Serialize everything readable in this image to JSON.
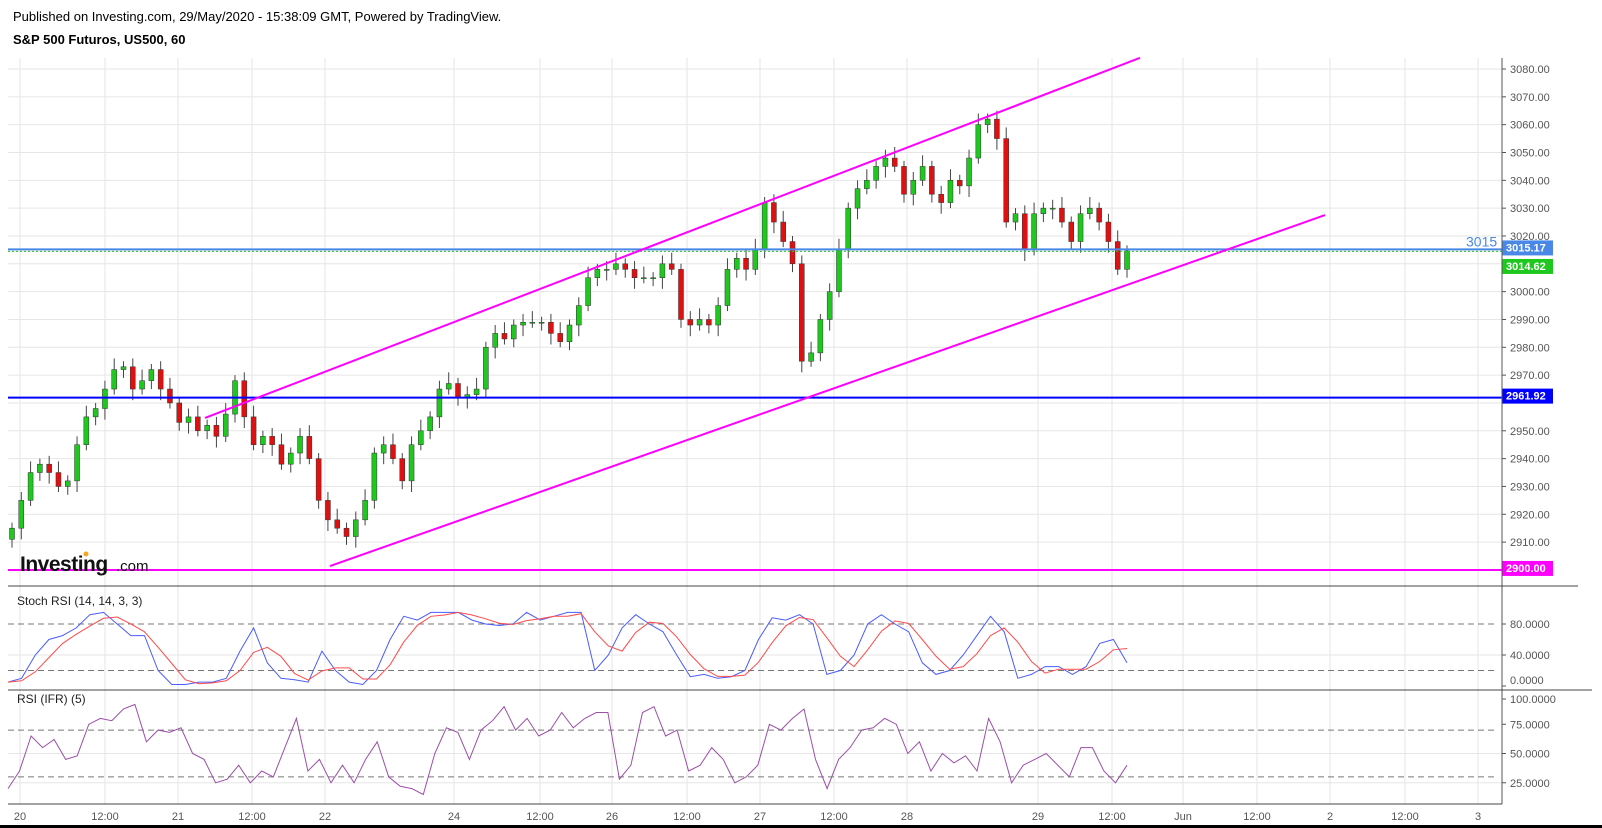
{
  "header": {
    "published": "Published on Investing.com, 29/May/2020 - 15:38:09 GMT, Powered by TradingView.",
    "symbol": "S&P 500 Futuros, US500, 60"
  },
  "logo": {
    "text": "Investing",
    "suffix": ".com"
  },
  "colors": {
    "up": "#1ec81e",
    "down": "#e01010",
    "channel": "#ff00ff",
    "support": "#0000ff",
    "current": "#4a88e8",
    "stochK": "#4a5cff",
    "stochD": "#ff4a4a",
    "rsi": "#9b4fa8",
    "grid": "#e6e6e6"
  },
  "chart_data": [
    {
      "type": "candlestick",
      "title": "S&P 500 Futuros, US500, 60",
      "x_ticks": [
        "20",
        "12:00",
        "21",
        "12:00",
        "22",
        "24",
        "12:00",
        "26",
        "12:00",
        "27",
        "12:00",
        "28",
        "29",
        "12:00",
        "Jun",
        "12:00",
        "2",
        "12:00",
        "3"
      ],
      "y_ticks": [
        "3080.00",
        "3070.00",
        "3060.00",
        "3050.00",
        "3040.00",
        "3030.00",
        "3020.00",
        "3000.00",
        "2990.00",
        "2980.00",
        "2970.00",
        "2950.00",
        "2940.00",
        "2930.00",
        "2920.00",
        "2910.00"
      ],
      "ylim": [
        2898,
        3084
      ],
      "closes": [
        2915,
        2925,
        2935,
        2938,
        2935,
        2930,
        2932,
        2945,
        2955,
        2958,
        2965,
        2972,
        2973,
        2965,
        2968,
        2972,
        2965,
        2960,
        2953,
        2955,
        2950,
        2952,
        2948,
        2956,
        2968,
        2955,
        2945,
        2948,
        2945,
        2938,
        2942,
        2948,
        2940,
        2925,
        2918,
        2915,
        2912,
        2918,
        2925,
        2942,
        2945,
        2940,
        2932,
        2945,
        2950,
        2955,
        2965,
        2967,
        2962,
        2963,
        2965,
        2980,
        2985,
        2983,
        2988,
        2989,
        2989,
        2989,
        2985,
        2982,
        2988,
        2995,
        3005,
        3008,
        3008,
        3010,
        3008,
        3005,
        3005,
        3005,
        3010,
        3008,
        2990,
        2988,
        2990,
        2988,
        2995,
        3008,
        3012,
        3008,
        3015,
        3032,
        3025,
        3018,
        3010,
        2975,
        2978,
        2990,
        3000,
        3015,
        3030,
        3037,
        3040,
        3045,
        3048,
        3045,
        3035,
        3040,
        3045,
        3035,
        3032,
        3040,
        3038,
        3048,
        3060,
        3062,
        3055,
        3025,
        3028,
        3015,
        3028,
        3030,
        3030,
        3025,
        3018,
        3028,
        3030,
        3025,
        3018,
        3008,
        3014.62
      ],
      "horizontal_lines": [
        {
          "price": 3015.17,
          "label": "3015.17",
          "text": "3015",
          "color": "#4a88e8"
        },
        {
          "price": 2961.92,
          "label": "2961.92",
          "color": "#0000ff"
        },
        {
          "price": 2900.0,
          "label": "2900.00",
          "color": "#ff00ff"
        }
      ],
      "last_price": {
        "label": "3014.62",
        "color": "#1ec81e"
      },
      "channel": {
        "upper": [
          2954.6,
          3084
        ],
        "lower": [
          2901.4,
          3027.5
        ]
      }
    },
    {
      "type": "line",
      "title": "Stoch RSI (14, 14, 3, 3)",
      "y_ticks": [
        "80.0000",
        "40.0000",
        "0.0000"
      ],
      "ylim": [
        0,
        100
      ],
      "levels": [
        80,
        20
      ],
      "k": [
        5,
        10,
        40,
        60,
        65,
        75,
        92,
        95,
        80,
        65,
        65,
        20,
        2,
        2,
        5,
        5,
        10,
        45,
        75,
        30,
        10,
        8,
        5,
        45,
        20,
        5,
        2,
        20,
        60,
        90,
        85,
        95,
        95,
        95,
        85,
        80,
        78,
        80,
        95,
        85,
        90,
        95,
        95,
        20,
        40,
        75,
        92,
        80,
        70,
        40,
        12,
        15,
        10,
        12,
        20,
        60,
        88,
        85,
        92,
        80,
        15,
        20,
        40,
        80,
        92,
        80,
        70,
        30,
        15,
        20,
        40,
        65,
        90,
        70,
        10,
        15,
        25,
        25,
        15,
        25,
        55,
        60,
        30
      ]
    },
    {
      "type": "line",
      "title": "RSI (IFR) (5)",
      "y_ticks": [
        "100.0000",
        "75.0000",
        "50.0000",
        "25.0000"
      ],
      "ylim": [
        0,
        100
      ],
      "levels": [
        70,
        30
      ],
      "values": [
        20,
        35,
        65,
        55,
        62,
        45,
        48,
        75,
        80,
        78,
        88,
        92,
        60,
        70,
        68,
        72,
        50,
        45,
        25,
        28,
        40,
        25,
        35,
        30,
        55,
        80,
        35,
        45,
        25,
        40,
        25,
        45,
        60,
        30,
        22,
        20,
        15,
        50,
        72,
        68,
        45,
        70,
        78,
        90,
        70,
        80,
        65,
        70,
        85,
        72,
        80,
        85,
        85,
        28,
        40,
        85,
        90,
        65,
        70,
        35,
        40,
        55,
        45,
        25,
        30,
        40,
        75,
        70,
        80,
        88,
        45,
        20,
        45,
        55,
        70,
        72,
        80,
        75,
        50,
        60,
        35,
        50,
        42,
        48,
        35,
        80,
        60,
        25,
        40,
        45,
        50,
        40,
        30,
        55,
        55,
        35,
        25,
        40
      ]
    }
  ]
}
